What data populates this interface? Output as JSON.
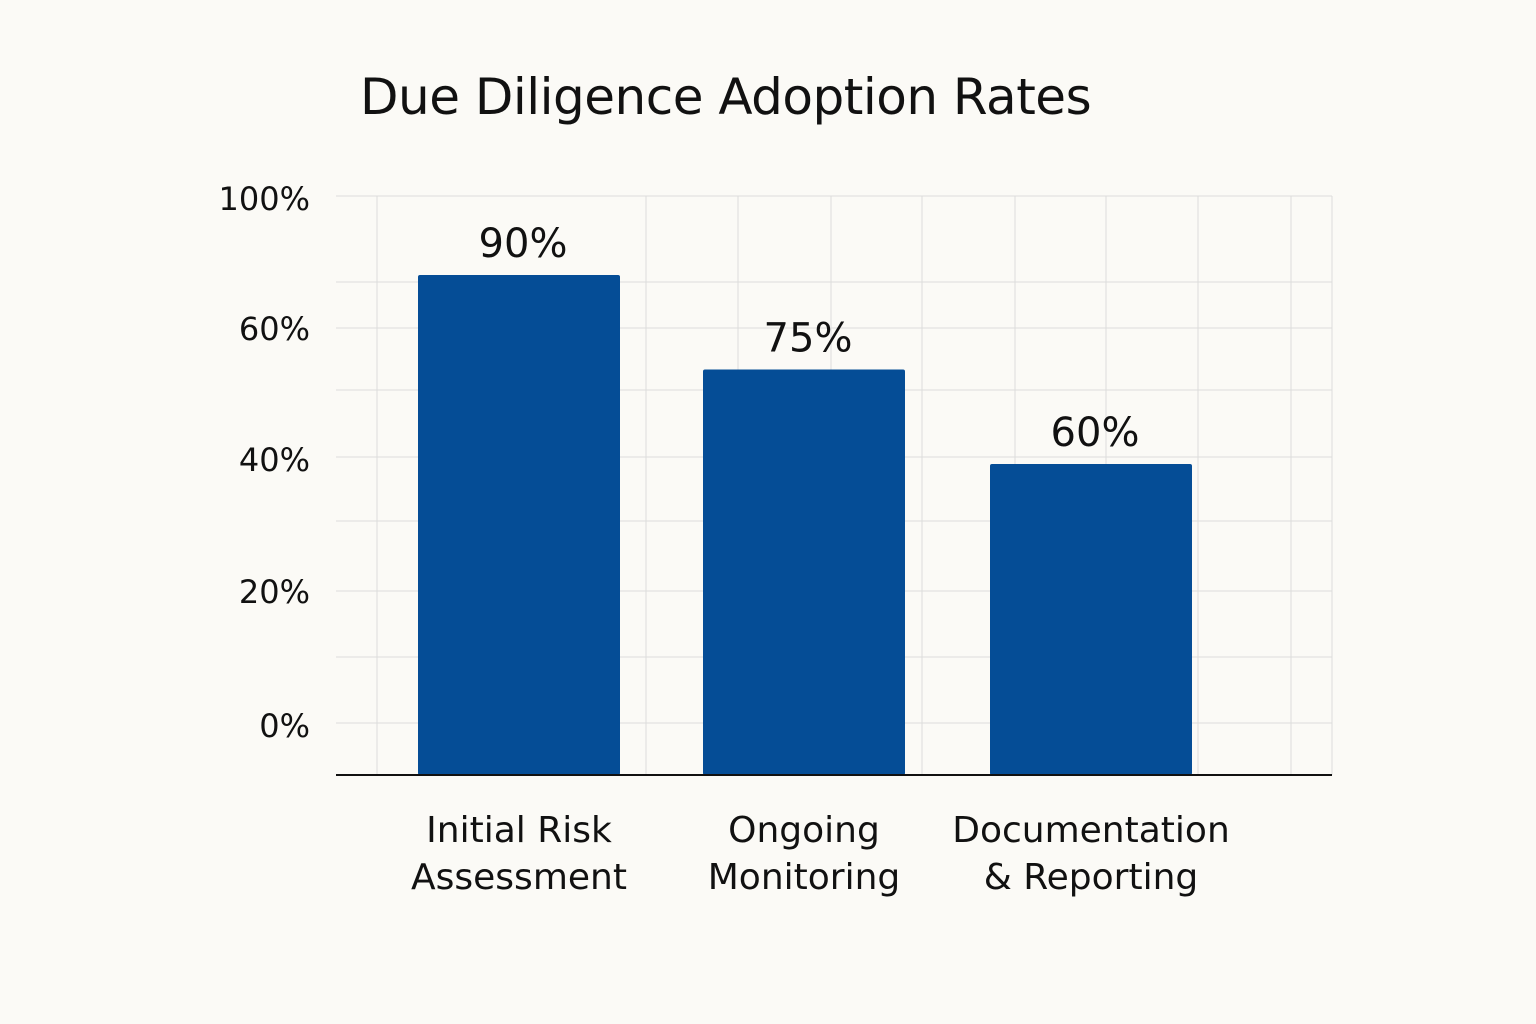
{
  "chart_data": {
    "type": "bar",
    "title": "Due Diligence Adoption Rates",
    "categories": [
      "Initial Risk\nAssessment",
      "Ongoing\nMonitoring",
      "Documentation\n& Reporting"
    ],
    "values": [
      90,
      75,
      60
    ],
    "data_labels": [
      "90%",
      "75%",
      "60%"
    ],
    "y_tick_labels": [
      "100%",
      "60%",
      "40%",
      "20%",
      "0%"
    ],
    "xlabel": "",
    "ylabel": "",
    "grid": true,
    "colors": {
      "bar": "#054d96",
      "background": "#fbfaf6",
      "grid": "#dcdcdc",
      "axis": "#111111"
    }
  }
}
